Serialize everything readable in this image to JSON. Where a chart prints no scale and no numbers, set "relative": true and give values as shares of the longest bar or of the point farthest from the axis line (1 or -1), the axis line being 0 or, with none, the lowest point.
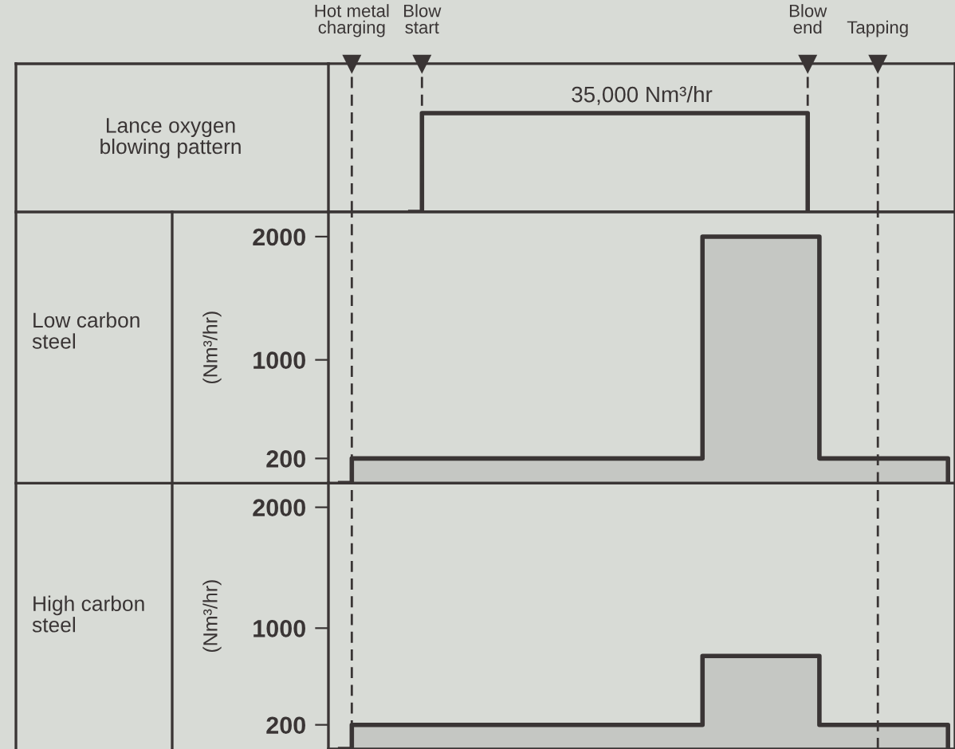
{
  "chart_data": [
    {
      "type": "step",
      "title": "Lance oxygen\nblowing pattern",
      "relative": true,
      "tick_labels": "x",
      "categories": [
        null,
        null,
        "Hot metal charging",
        null,
        null,
        null,
        null,
        null,
        "Blow start",
        null,
        null,
        null,
        null,
        null,
        null,
        null,
        null,
        null,
        null,
        null,
        null,
        null,
        null,
        null,
        null,
        null,
        null,
        null,
        null,
        null,
        null,
        null,
        null,
        null,
        null,
        null,
        null,
        null,
        null,
        null,
        null,
        "Blow end",
        null,
        null,
        null,
        null,
        null,
        "Tapping",
        null,
        null,
        null,
        null,
        null,
        null
      ],
      "series": [
        {
          "color": "#3a3535",
          "values": [
            null,
            null,
            null,
            null,
            null,
            null,
            null,
            0,
            1,
            1,
            1,
            1,
            1,
            1,
            1,
            1,
            1,
            1,
            1,
            1,
            1,
            1,
            1,
            1,
            1,
            1,
            1,
            1,
            1,
            1,
            1,
            1,
            1,
            1,
            1,
            1,
            1,
            1,
            1,
            1,
            1,
            0,
            null,
            null,
            null,
            null,
            null,
            null,
            null,
            null,
            null,
            null,
            null,
            null
          ]
        }
      ],
      "annotations": [
        "35,000 Nm³/hr"
      ],
      "ref_lines": [
        {
          "axis": "x",
          "value": "Hot metal charging",
          "line_style": "dashed"
        },
        {
          "axis": "x",
          "value": "Blow start",
          "line_style": "dashed"
        },
        {
          "axis": "x",
          "value": "Blow end",
          "line_style": "dashed"
        },
        {
          "axis": "x",
          "value": "Tapping",
          "line_style": "dashed"
        }
      ]
    },
    {
      "type": "area",
      "title": "Low carbon\nsteel",
      "ylabel": "(Nm³/hr)",
      "ylim": [
        0,
        2200
      ],
      "yticks": [
        200,
        1000,
        2000
      ],
      "tick_labels": "y",
      "categories": [
        null,
        null,
        "Hot metal charging",
        null,
        null,
        null,
        null,
        null,
        "Blow start",
        null,
        null,
        null,
        null,
        null,
        null,
        null,
        null,
        null,
        null,
        null,
        null,
        null,
        null,
        null,
        null,
        null,
        null,
        null,
        null,
        null,
        null,
        null,
        null,
        null,
        null,
        null,
        null,
        null,
        null,
        null,
        null,
        "Blow end",
        null,
        null,
        null,
        null,
        null,
        "Tapping",
        null,
        null,
        null,
        null,
        null,
        null
      ],
      "series": [
        {
          "color": "#c5c7c3",
          "values": [
            null,
            0,
            200,
            200,
            200,
            200,
            200,
            200,
            200,
            200,
            200,
            200,
            200,
            200,
            200,
            200,
            200,
            200,
            200,
            200,
            200,
            200,
            200,
            200,
            200,
            200,
            200,
            200,
            200,
            200,
            200,
            200,
            2000,
            2000,
            2000,
            2000,
            2000,
            2000,
            2000,
            2000,
            2000,
            2000,
            200,
            200,
            200,
            200,
            200,
            200,
            200,
            200,
            200,
            200,
            200,
            0
          ]
        }
      ],
      "ref_lines": [
        {
          "axis": "x",
          "value": "Hot metal charging",
          "line_style": "dashed"
        },
        {
          "axis": "x",
          "value": "Tapping",
          "line_style": "dashed"
        }
      ]
    },
    {
      "type": "area",
      "title": "High carbon\nsteel",
      "ylabel": "(Nm³/hr)",
      "ylim": [
        0,
        2200
      ],
      "yticks": [
        200,
        1000,
        2000
      ],
      "tick_labels": "y",
      "categories": [
        null,
        null,
        "Hot metal charging",
        null,
        null,
        null,
        null,
        null,
        "Blow start",
        null,
        null,
        null,
        null,
        null,
        null,
        null,
        null,
        null,
        null,
        null,
        null,
        null,
        null,
        null,
        null,
        null,
        null,
        null,
        null,
        null,
        null,
        null,
        null,
        null,
        null,
        null,
        null,
        null,
        null,
        null,
        null,
        "Blow end",
        null,
        null,
        null,
        null,
        null,
        "Tapping",
        null,
        null,
        null,
        null,
        null,
        null
      ],
      "series": [
        {
          "color": "#c5c7c3",
          "values": [
            null,
            0,
            200,
            200,
            200,
            200,
            200,
            200,
            200,
            200,
            200,
            200,
            200,
            200,
            200,
            200,
            200,
            200,
            200,
            200,
            200,
            200,
            200,
            200,
            200,
            200,
            200,
            200,
            200,
            200,
            200,
            200,
            770,
            770,
            770,
            770,
            770,
            770,
            770,
            770,
            770,
            770,
            200,
            200,
            200,
            200,
            200,
            200,
            200,
            200,
            200,
            200,
            200,
            0
          ]
        }
      ],
      "ref_lines": [
        {
          "axis": "x",
          "value": "Hot metal charging",
          "line_style": "dashed"
        },
        {
          "axis": "x",
          "value": "Tapping",
          "line_style": "dashed"
        }
      ]
    }
  ]
}
